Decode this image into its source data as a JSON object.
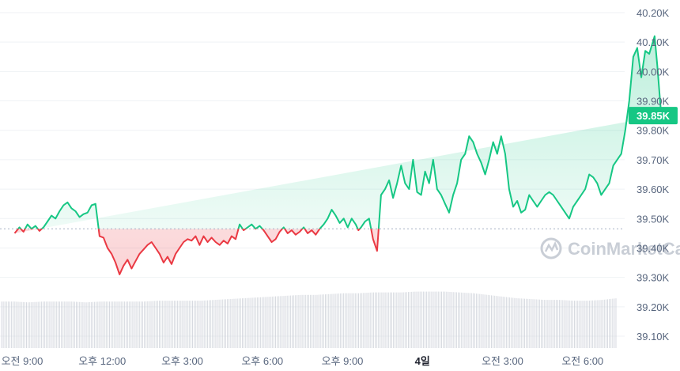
{
  "chart_data": {
    "type": "area",
    "currency_hint": "price",
    "y_tick_labels": [
      "40.20K",
      "40.10K",
      "40.00K",
      "39.90K",
      "39.80K",
      "39.70K",
      "39.60K",
      "39.50K",
      "39.40K",
      "39.30K",
      "39.20K",
      "39.10K"
    ],
    "y_tick_values": [
      40200,
      40100,
      40000,
      39900,
      39800,
      39700,
      39600,
      39500,
      39400,
      39300,
      39200,
      39100
    ],
    "ylim": [
      39070,
      40230
    ],
    "x_tick_labels": [
      "오전 9:00",
      "오후 12:00",
      "오후 3:00",
      "오후 6:00",
      "오후 9:00",
      "4일",
      "오전 3:00",
      "오전 6:00"
    ],
    "x_tick_hours": [
      0,
      3,
      6,
      9,
      12,
      15,
      18,
      21
    ],
    "x_tick_bold": [
      false,
      false,
      false,
      false,
      false,
      true,
      false,
      false
    ],
    "reference_price": 39465,
    "current_price_label": "39.85K",
    "current_price": 39850,
    "colors": {
      "up": "#16c784",
      "down": "#ea3943",
      "grid": "#eff2f5",
      "axis_text": "#58667e",
      "volume": "#c9ced6"
    },
    "series": [
      {
        "hours": [
          -0.28,
          -0.1,
          0.05,
          0.2,
          0.35,
          0.5,
          0.65,
          0.8,
          0.95,
          1.1,
          1.25,
          1.4,
          1.55,
          1.7,
          1.85,
          2.0,
          2.15,
          2.3,
          2.45,
          2.6,
          2.75,
          2.9,
          3.05,
          3.2,
          3.35,
          3.5,
          3.65,
          3.8,
          3.95,
          4.1,
          4.25,
          4.4,
          4.55,
          4.7,
          4.85,
          5.0,
          5.15,
          5.3,
          5.45,
          5.6,
          5.75,
          5.9,
          6.05,
          6.2,
          6.35,
          6.5,
          6.65,
          6.8,
          6.95,
          7.1,
          7.25,
          7.4,
          7.55,
          7.7,
          7.85,
          8.0,
          8.15,
          8.3,
          8.45,
          8.6,
          8.75,
          8.9,
          9.05,
          9.2,
          9.35,
          9.5,
          9.65,
          9.8,
          9.95,
          10.1,
          10.25,
          10.4,
          10.55,
          10.7,
          10.85,
          11.0,
          11.15,
          11.3,
          11.45,
          11.6,
          11.75,
          11.9,
          12.05,
          12.2,
          12.35,
          12.5,
          12.6,
          12.7,
          12.85,
          13.0,
          13.15,
          13.3,
          13.45,
          13.6,
          13.75,
          13.9,
          14.05,
          14.2,
          14.35,
          14.5,
          14.65,
          14.8,
          14.95,
          15.1,
          15.25,
          15.4,
          15.55,
          15.7,
          15.85,
          16.0,
          16.15,
          16.3,
          16.45,
          16.6,
          16.75,
          16.9,
          17.05,
          17.2,
          17.35,
          17.5,
          17.65,
          17.8,
          17.95,
          18.1,
          18.25,
          18.4,
          18.55,
          18.7,
          18.85,
          19.0,
          19.15,
          19.3,
          19.45,
          19.6,
          19.75,
          19.9,
          20.05,
          20.2,
          20.35,
          20.5,
          20.65,
          20.8,
          20.95,
          21.1,
          21.25,
          21.4,
          21.55,
          21.7,
          21.85,
          22.0,
          22.15,
          22.3,
          22.45,
          22.6,
          22.75,
          22.9
        ],
        "prices": [
          39450,
          39470,
          39455,
          39480,
          39465,
          39475,
          39458,
          39470,
          39490,
          39510,
          39500,
          39525,
          39545,
          39555,
          39535,
          39525,
          39505,
          39515,
          39520,
          39545,
          39550,
          39440,
          39435,
          39400,
          39380,
          39350,
          39310,
          39340,
          39360,
          39330,
          39355,
          39380,
          39395,
          39410,
          39420,
          39400,
          39380,
          39350,
          39370,
          39345,
          39380,
          39400,
          39420,
          39430,
          39425,
          39440,
          39410,
          39440,
          39420,
          39435,
          39420,
          39410,
          39425,
          39415,
          39440,
          39430,
          39480,
          39460,
          39470,
          39480,
          39465,
          39475,
          39460,
          39440,
          39420,
          39430,
          39455,
          39470,
          39450,
          39460,
          39445,
          39455,
          39470,
          39450,
          39460,
          39445,
          39465,
          39480,
          39500,
          39530,
          39510,
          39485,
          39500,
          39470,
          39500,
          39480,
          39460,
          39470,
          39490,
          39500,
          39430,
          39390,
          39580,
          39600,
          39630,
          39570,
          39620,
          39680,
          39620,
          39600,
          39700,
          39590,
          39580,
          39660,
          39620,
          39700,
          39600,
          39580,
          39550,
          39520,
          39580,
          39620,
          39700,
          39720,
          39780,
          39760,
          39720,
          39690,
          39650,
          39700,
          39760,
          39720,
          39780,
          39720,
          39600,
          39540,
          39560,
          39520,
          39530,
          39580,
          39560,
          39540,
          39560,
          39580,
          39590,
          39580,
          39560,
          39540,
          39520,
          39500,
          39540,
          39560,
          39580,
          39600,
          39650,
          39640,
          39620,
          39580,
          39600,
          39620,
          39680,
          39700,
          39720,
          39800
        ]
      }
    ],
    "spike_hours": [
      22.9,
      23.05,
      23.2,
      23.35,
      23.5,
      23.6,
      23.7,
      23.8,
      23.95,
      24.1,
      24.2
    ],
    "spike_prices": [
      39800,
      39900,
      40050,
      40080,
      39980,
      40070,
      40060,
      40090,
      40120,
      40020,
      39850
    ],
    "volume_levels": [
      0.56,
      0.56,
      0.55,
      0.56,
      0.56,
      0.56,
      0.55,
      0.56,
      0.56,
      0.56,
      0.56,
      0.57,
      0.57,
      0.57,
      0.57,
      0.58,
      0.59,
      0.6,
      0.61,
      0.62,
      0.63,
      0.64,
      0.64,
      0.65,
      0.66,
      0.66,
      0.67,
      0.67,
      0.67,
      0.68,
      0.68,
      0.68,
      0.67,
      0.66,
      0.64,
      0.62,
      0.6,
      0.59,
      0.58,
      0.58,
      0.57,
      0.57,
      0.58,
      0.6
    ],
    "watermark": "CoinMarketCap"
  }
}
